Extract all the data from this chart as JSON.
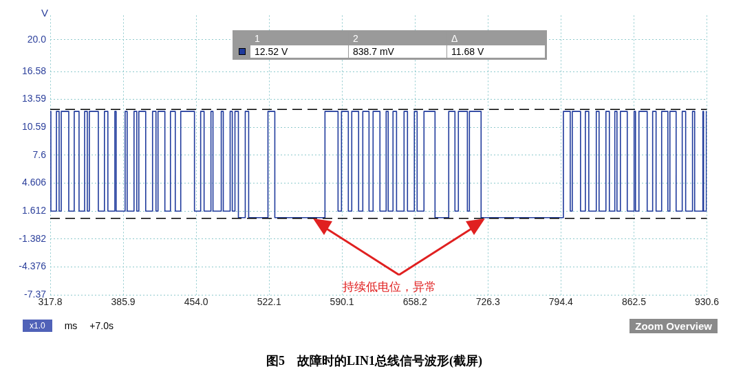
{
  "chart_data": {
    "type": "step",
    "title": "图5　故障时的LIN1总线信号波形(截屏)",
    "xlabel": "ms",
    "ylabel": "V",
    "x": [
      317.8,
      318.4,
      323.6,
      326.1,
      328.1,
      335.1,
      340.2,
      344.7,
      349.9,
      352.4,
      354.3,
      362.7,
      368.4,
      371.6,
      378.1,
      379.3,
      387.7,
      389.6,
      396.0,
      398.6,
      400.5,
      406.9,
      413.3,
      416.5,
      418.4,
      424.8,
      430.0,
      434.5,
      439.6,
      452.4,
      458.2,
      461.4,
      467.8,
      469.7,
      477.4,
      479.3,
      485.7,
      487.7,
      490.2,
      493.4,
      499.8,
      503.0,
      521.0,
      527.4,
      574.2,
      586.4,
      589.6,
      596.0,
      599.2,
      605.6,
      609.5,
      615.3,
      619.1,
      625.5,
      631.3,
      633.2,
      637.7,
      641.0,
      648.0,
      651.2,
      657.6,
      660.2,
      666.6,
      676.9,
      689.7,
      695.5,
      698.7,
      707.1,
      709.0,
      719.9,
      796.7,
      803.1,
      805.0,
      812.7,
      817.2,
      820.4,
      827.4,
      830.0,
      836.4,
      839.6,
      844.7,
      846.7,
      849.9,
      856.3,
      862.7,
      864.0,
      867.2,
      874.9,
      880.0,
      883.2,
      888.4,
      894.2,
      896.1,
      901.9,
      907.6,
      910.8,
      917.2,
      919.2,
      926.9,
      927.5,
      930.1,
      930.6
    ],
    "series": [
      {
        "color": "#1f3a9c",
        "values": [
          12.3,
          1.6,
          12.3,
          1.6,
          12.3,
          1.6,
          12.3,
          1.6,
          12.3,
          1.6,
          12.3,
          1.6,
          12.3,
          1.6,
          12.3,
          1.6,
          12.3,
          1.6,
          12.3,
          1.6,
          12.3,
          1.6,
          12.3,
          1.6,
          12.3,
          1.6,
          12.3,
          1.6,
          12.3,
          1.6,
          12.3,
          1.6,
          12.3,
          1.6,
          12.3,
          1.6,
          12.3,
          1.6,
          12.3,
          0.9,
          12.3,
          0.9,
          12.3,
          0.9,
          12.3,
          1.6,
          12.3,
          1.6,
          12.3,
          1.6,
          12.3,
          1.6,
          12.3,
          1.6,
          12.3,
          1.6,
          12.3,
          1.6,
          12.3,
          1.6,
          12.3,
          1.6,
          12.3,
          0.9,
          12.3,
          1.6,
          12.3,
          1.6,
          12.3,
          0.9,
          12.3,
          1.6,
          12.3,
          1.6,
          12.3,
          1.6,
          12.3,
          1.6,
          12.3,
          1.6,
          12.3,
          1.6,
          12.3,
          1.6,
          12.3,
          1.6,
          12.3,
          1.6,
          12.3,
          1.6,
          12.3,
          1.6,
          12.3,
          1.6,
          12.3,
          1.6,
          12.3,
          1.6,
          12.3,
          1.6,
          12.3,
          12.3
        ]
      }
    ],
    "xlim": [
      317.8,
      930.6
    ],
    "xticks": [
      317.8,
      385.9,
      {
        "value": 454,
        "label": "454.0"
      },
      522.1,
      590.1,
      658.2,
      726.3,
      794.4,
      862.5,
      930.6
    ],
    "ylim": [
      -7.37,
      22.6
    ],
    "yticks": [
      {
        "value": 20,
        "label": "20.0"
      },
      16.58,
      13.59,
      10.59,
      7.6,
      4.606,
      1.612,
      -1.382,
      -4.376,
      -7.37
    ],
    "ref_lines": [
      {
        "axis": "y",
        "value": 12.52,
        "color": "#000000",
        "line_style": "dashed"
      },
      {
        "axis": "y",
        "value": 0.8387,
        "color": "#000000",
        "line_style": "dashed"
      }
    ],
    "annotations": [
      "1",
      "2",
      "Δ",
      "12.52 V",
      "838.7 mV",
      "11.68 V",
      "持续低电位，异常",
      "x1.0",
      "+7.0s",
      "Zoom Overview"
    ],
    "grid": true,
    "legend": false,
    "marker": "none",
    "line_style": "solid"
  }
}
